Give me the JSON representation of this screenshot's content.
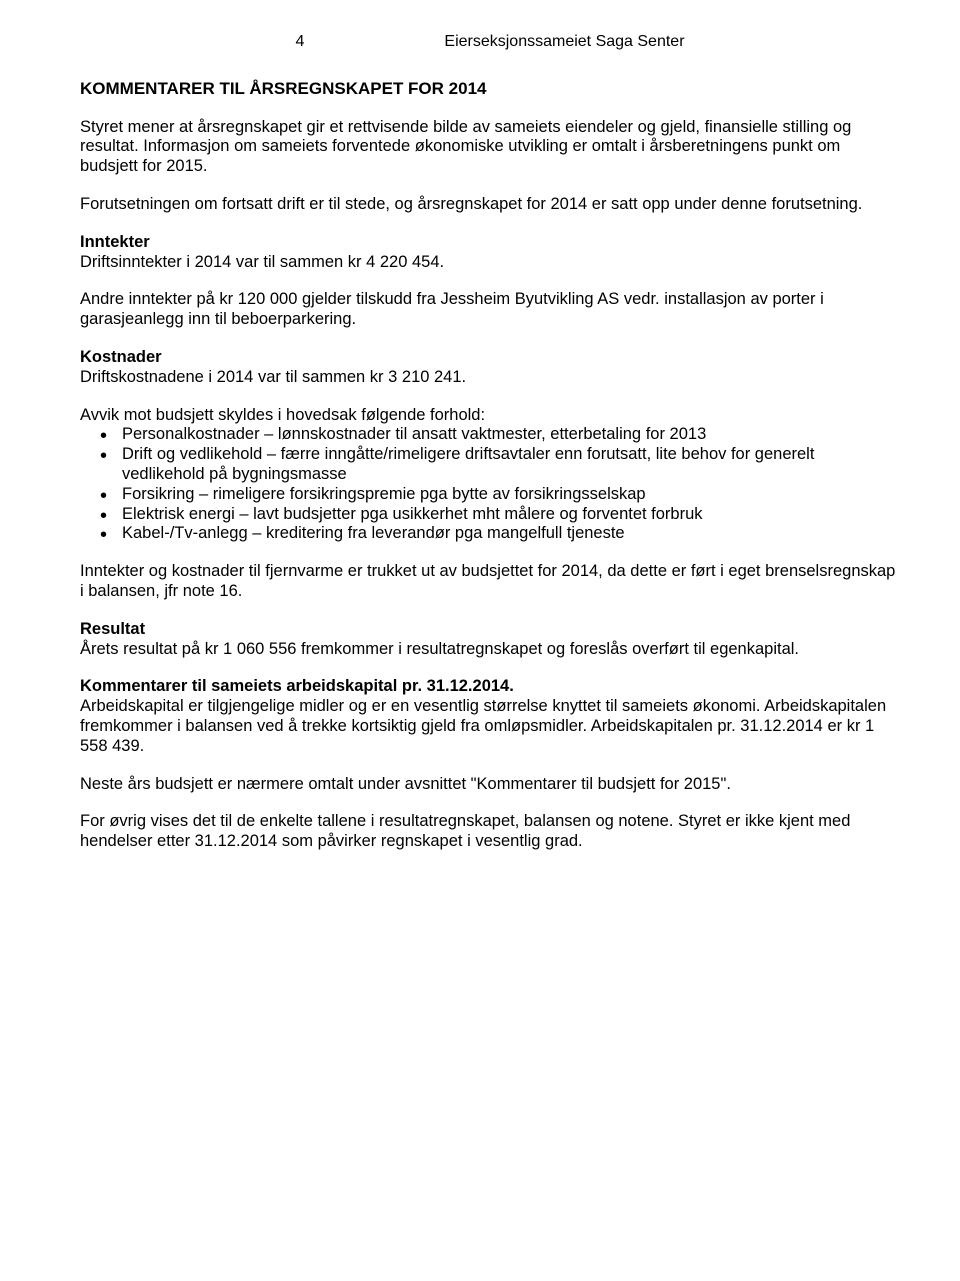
{
  "header": {
    "page_number": "4",
    "org_name": "Eierseksjonssameiet Saga Senter"
  },
  "title": "KOMMENTARER TIL ÅRSREGNSKAPET FOR 2014",
  "intro": [
    "Styret mener at årsregnskapet gir et rettvisende bilde av sameiets eiendeler og gjeld, finansielle stilling og resultat. Informasjon om sameiets forventede økonomiske utvikling er omtalt i årsberetningens punkt om budsjett for 2015.",
    "Forutsetningen om fortsatt drift er til stede, og årsregnskapet for 2014 er satt opp under denne forutsetning."
  ],
  "inntekter": {
    "heading": "Inntekter",
    "line1": "Driftsinntekter i 2014 var til sammen kr 4 220 454.",
    "line2": "Andre inntekter på kr 120 000 gjelder tilskudd fra Jessheim Byutvikling AS  vedr. installasjon av porter i garasjeanlegg inn til beboerparkering."
  },
  "kostnader": {
    "heading": "Kostnader",
    "line1": "Driftskostnadene i 2014 var til sammen kr 3 210 241.",
    "avvik_intro": "Avvik mot budsjett skyldes i hovedsak følgende forhold:",
    "bullets": [
      "Personalkostnader – lønnskostnader til ansatt vaktmester, etterbetaling for 2013",
      "Drift og vedlikehold – færre inngåtte/rimeligere driftsavtaler enn forutsatt, lite behov for generelt vedlikehold på bygningsmasse",
      "Forsikring – rimeligere forsikringspremie pga bytte av forsikringsselskap",
      "Elektrisk energi – lavt budsjetter pga usikkerhet mht målere og forventet forbruk",
      "Kabel-/Tv-anlegg – kreditering fra leverandør pga mangelfull tjeneste"
    ],
    "post": "Inntekter og kostnader til fjernvarme er trukket ut av budsjettet for 2014, da dette er ført i eget brenselsregnskap i balansen, jfr note 16."
  },
  "resultat": {
    "heading": "Resultat",
    "text": "Årets resultat på kr 1 060 556 fremkommer i resultatregnskapet og foreslås overført til egenkapital."
  },
  "arbeidskapital": {
    "heading": "Kommentarer til sameiets arbeidskapital pr. 31.12.2014.",
    "text": "Arbeidskapital er tilgjengelige midler og er en vesentlig størrelse knyttet til sameiets økonomi. Arbeidskapitalen fremkommer i balansen ved å trekke kortsiktig gjeld fra omløpsmidler. Arbeidskapitalen pr. 31.12.2014 er kr 1 558 439."
  },
  "neste_ar": "Neste års budsjett er nærmere omtalt under avsnittet \"Kommentarer til budsjett for 2015\".",
  "footer": "For øvrig vises det til de enkelte tallene i resultatregnskapet, balansen og notene. Styret er ikke kjent med hendelser etter 31.12.2014 som påvirker regnskapet i vesentlig grad."
}
